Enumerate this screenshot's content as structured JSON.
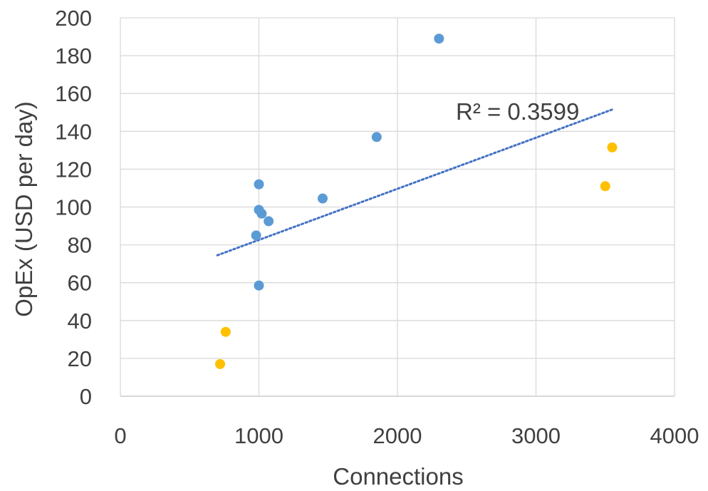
{
  "chart_data": {
    "type": "scatter",
    "title": "",
    "xlabel": "Connections",
    "ylabel": "OpEx (USD per day)",
    "xlim": [
      0,
      4000
    ],
    "ylim": [
      0,
      200
    ],
    "xticks": [
      0,
      1000,
      2000,
      3000,
      4000
    ],
    "yticks": [
      0,
      20,
      40,
      60,
      80,
      100,
      120,
      140,
      160,
      180,
      200
    ],
    "grid": true,
    "legend": "none",
    "series": [
      {
        "color": "#5b9bd5",
        "points": [
          {
            "x": 1000,
            "y": 112
          },
          {
            "x": 1000,
            "y": 98.5
          },
          {
            "x": 1020,
            "y": 96.5
          },
          {
            "x": 1070,
            "y": 92.5
          },
          {
            "x": 980,
            "y": 85
          },
          {
            "x": 1000,
            "y": 58.5
          },
          {
            "x": 1460,
            "y": 104.5
          },
          {
            "x": 1850,
            "y": 137
          },
          {
            "x": 2300,
            "y": 189
          }
        ]
      },
      {
        "color": "#ffc000",
        "points": [
          {
            "x": 720,
            "y": 17
          },
          {
            "x": 760,
            "y": 34
          },
          {
            "x": 3500,
            "y": 111
          },
          {
            "x": 3550,
            "y": 131.5
          }
        ]
      }
    ],
    "trendline": {
      "style": "dotted",
      "color": "#4472c4",
      "from": {
        "x": 700,
        "y": 74.5
      },
      "to": {
        "x": 3550,
        "y": 151.5
      },
      "label": "R² = 0.3599"
    }
  }
}
